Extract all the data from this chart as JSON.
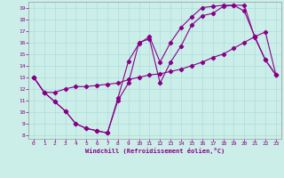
{
  "xlabel": "Windchill (Refroidissement éolien,°C)",
  "background_color": "#cceee8",
  "grid_color": "#aadddd",
  "line_color": "#880088",
  "xlim": [
    -0.5,
    23.5
  ],
  "ylim": [
    7.7,
    19.5
  ],
  "yticks": [
    8,
    9,
    10,
    11,
    12,
    13,
    14,
    15,
    16,
    17,
    18,
    19
  ],
  "xticks": [
    0,
    1,
    2,
    3,
    4,
    5,
    6,
    7,
    8,
    9,
    10,
    11,
    12,
    13,
    14,
    15,
    16,
    17,
    18,
    19,
    20,
    21,
    22,
    23
  ],
  "line1_x": [
    0,
    1,
    2,
    3,
    4,
    5,
    6,
    7,
    8,
    9,
    10,
    11,
    12,
    13,
    14,
    15,
    16,
    17,
    18,
    19,
    20,
    21,
    22,
    23
  ],
  "line1_y": [
    13,
    11.7,
    10.9,
    10.1,
    9.0,
    8.6,
    8.4,
    8.2,
    11.0,
    12.5,
    16.0,
    16.3,
    12.5,
    14.3,
    15.7,
    17.5,
    18.3,
    18.5,
    19.1,
    19.2,
    19.2,
    16.4,
    14.5,
    13.2
  ],
  "line2_x": [
    0,
    1,
    2,
    3,
    4,
    5,
    6,
    7,
    8,
    9,
    10,
    11,
    12,
    13,
    14,
    15,
    16,
    17,
    18,
    19,
    20,
    21,
    22,
    23
  ],
  "line2_y": [
    13,
    11.7,
    11.7,
    12.0,
    12.2,
    12.2,
    12.3,
    12.4,
    12.5,
    12.8,
    13.0,
    13.2,
    13.3,
    13.5,
    13.7,
    14.0,
    14.3,
    14.7,
    15.0,
    15.5,
    16.0,
    16.5,
    16.9,
    13.2
  ],
  "line3_x": [
    0,
    1,
    2,
    3,
    4,
    5,
    6,
    7,
    8,
    9,
    10,
    11,
    12,
    13,
    14,
    15,
    16,
    17,
    18,
    19,
    20,
    21,
    22,
    23
  ],
  "line3_y": [
    13,
    11.7,
    10.9,
    10.1,
    9.0,
    8.6,
    8.4,
    8.2,
    11.2,
    14.4,
    15.9,
    16.5,
    14.3,
    16.0,
    17.3,
    18.2,
    19.0,
    19.1,
    19.2,
    19.2,
    18.7,
    16.5,
    14.5,
    13.2
  ]
}
